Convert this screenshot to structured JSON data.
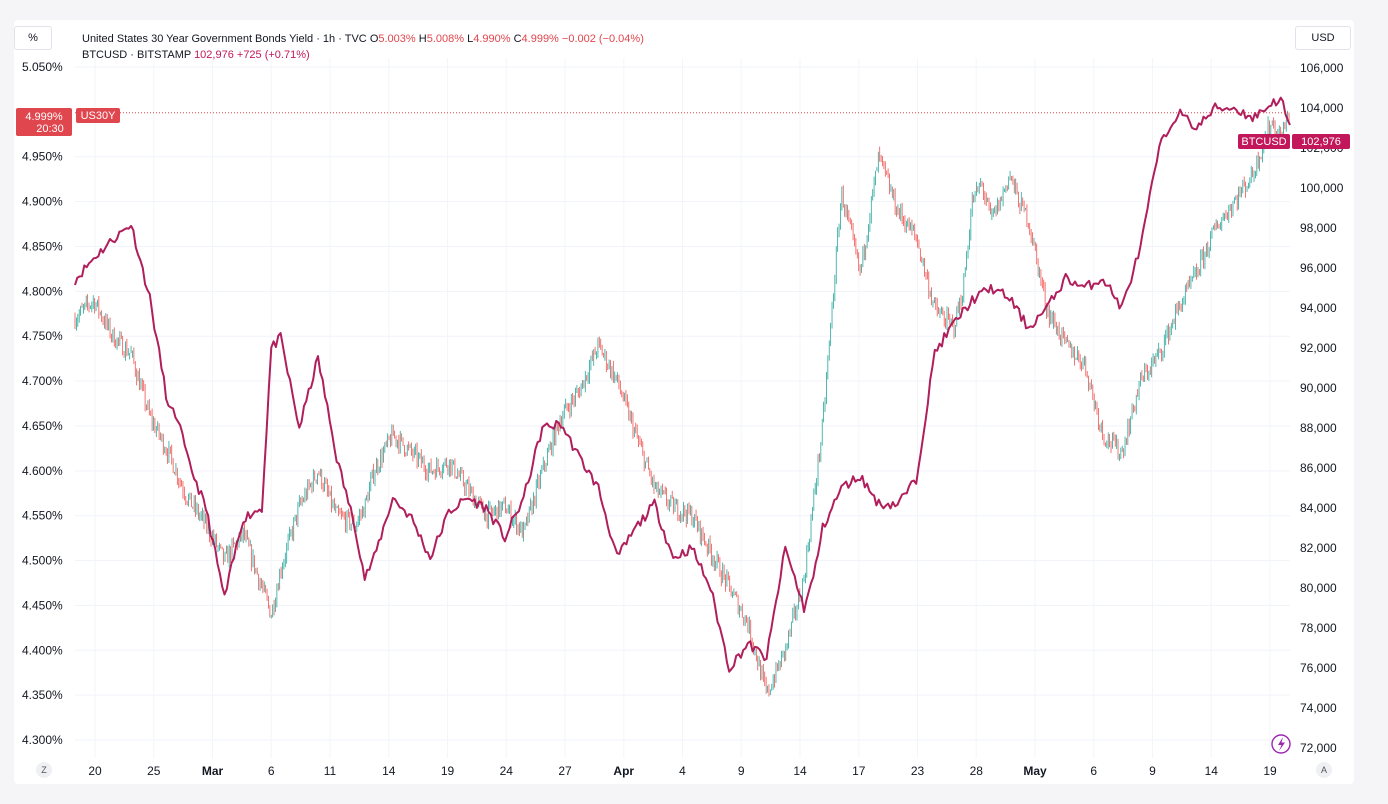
{
  "units": {
    "left": "%",
    "right": "USD"
  },
  "legend": {
    "us30y": {
      "title": "United States 30 Year Government Bonds Yield · 1h · TVC",
      "o_label": "O",
      "o_value": "5.003%",
      "h_label": "H",
      "h_value": "5.008%",
      "l_label": "L",
      "l_value": "4.990%",
      "c_label": "C",
      "c_value": "4.999%",
      "change": "−0.002 (−0.04%)"
    },
    "btcusd": {
      "title": "BTCUSD · BITSTAMP",
      "price": "102,976",
      "change": "+725 (+0.71%)"
    }
  },
  "badges": {
    "us30y_value": "4.999%",
    "us30y_time": "20:30",
    "us30y_symbol": "US30Y",
    "btc_symbol": "BTCUSD",
    "btc_value": "102,976"
  },
  "footer": {
    "left_btn": "Z",
    "right_btn": "A"
  },
  "colors": {
    "candle_up": "#26a69a",
    "candle_down": "#ef5350",
    "btc_line": "#b01e5c",
    "price_line": "#e0464d",
    "badge_red": "#e0464d",
    "badge_mag": "#c2185b"
  },
  "icons": {
    "bolt": "lightning-bolt-icon"
  },
  "chart_data": {
    "type": "line",
    "title": "",
    "x_tick_labels": [
      "20",
      "25",
      "Mar",
      "6",
      "11",
      "14",
      "19",
      "24",
      "27",
      "Apr",
      "4",
      "9",
      "14",
      "17",
      "23",
      "28",
      "May",
      "6",
      "9",
      "14",
      "19"
    ],
    "y_left": {
      "label": "%",
      "ticks": [
        "5.050%",
        "4.950%",
        "4.900%",
        "4.850%",
        "4.800%",
        "4.750%",
        "4.700%",
        "4.650%",
        "4.600%",
        "4.550%",
        "4.500%",
        "4.450%",
        "4.400%",
        "4.350%",
        "4.300%"
      ],
      "range": [
        4.28,
        5.06
      ]
    },
    "y_right": {
      "label": "USD",
      "ticks": [
        "106,000",
        "104,000",
        "102,000",
        "100,000",
        "98,000",
        "96,000",
        "94,000",
        "92,000",
        "90,000",
        "88,000",
        "86,000",
        "84,000",
        "82,000",
        "80,000",
        "78,000",
        "76,000",
        "74,000",
        "72,000"
      ],
      "range": [
        71500,
        106500
      ]
    },
    "x_index_range": [
      0,
      130
    ],
    "series": [
      {
        "name": "United States 30 Year Government Bonds Yield",
        "kind": "candle-approx",
        "axis": "left",
        "x": [
          0,
          2,
          4,
          6,
          8,
          10,
          12,
          14,
          16,
          18,
          19,
          20,
          21,
          22,
          24,
          26,
          28,
          30,
          31,
          32,
          34,
          36,
          38,
          40,
          42,
          44,
          46,
          48,
          50,
          52,
          54,
          56,
          58,
          60,
          62,
          64,
          66,
          68,
          70,
          72,
          74,
          76,
          78,
          80,
          82,
          84,
          86,
          88,
          90,
          92,
          94,
          95,
          96,
          97,
          98,
          99,
          100,
          101,
          102,
          104,
          106,
          108,
          110,
          112,
          114,
          116,
          118,
          120,
          122,
          124,
          126,
          128,
          129,
          130
        ],
        "values": [
          4.77,
          4.79,
          4.75,
          4.73,
          4.66,
          4.62,
          4.57,
          4.54,
          4.5,
          4.53,
          4.5,
          4.47,
          4.44,
          4.49,
          4.56,
          4.6,
          4.55,
          4.54,
          4.56,
          4.6,
          4.64,
          4.62,
          4.6,
          4.61,
          4.58,
          4.55,
          4.56,
          4.53,
          4.6,
          4.66,
          4.69,
          4.74,
          4.7,
          4.64,
          4.58,
          4.56,
          4.55,
          4.51,
          4.47,
          4.43,
          4.35,
          4.4,
          4.48,
          4.65,
          4.91,
          4.82,
          4.95,
          4.89,
          4.86,
          4.78,
          4.76,
          4.8,
          4.9,
          4.92,
          4.88,
          4.9,
          4.93,
          4.9,
          4.88,
          4.78,
          4.74,
          4.72,
          4.64,
          4.62,
          4.7,
          4.73,
          4.78,
          4.82,
          4.87,
          4.9,
          4.93,
          4.99,
          4.97,
          4.999
        ]
      },
      {
        "name": "BTCUSD",
        "kind": "line",
        "axis": "right",
        "x": [
          0,
          2,
          4,
          6,
          8,
          10,
          11,
          12,
          14,
          16,
          18,
          20,
          21,
          22,
          24,
          26,
          28,
          30,
          31,
          32,
          34,
          36,
          38,
          40,
          42,
          44,
          46,
          48,
          50,
          52,
          54,
          56,
          58,
          60,
          62,
          64,
          66,
          68,
          70,
          72,
          74,
          76,
          78,
          79,
          80,
          82,
          84,
          86,
          88,
          90,
          92,
          94,
          96,
          98,
          100,
          102,
          104,
          106,
          108,
          110,
          112,
          114,
          116,
          118,
          120,
          122,
          124,
          126,
          128,
          129,
          130
        ],
        "values": [
          95400,
          96500,
          97400,
          98200,
          94500,
          89000,
          88500,
          86500,
          84000,
          79500,
          83500,
          84000,
          92000,
          92500,
          88000,
          91500,
          86500,
          83000,
          80500,
          81500,
          84500,
          83500,
          81500,
          83800,
          84500,
          84000,
          82500,
          84500,
          88000,
          88200,
          86500,
          85000,
          81500,
          83000,
          84200,
          81500,
          82000,
          80000,
          76000,
          77200,
          76500,
          82000,
          79000,
          80500,
          83000,
          85000,
          85600,
          84200,
          84200,
          85400,
          91800,
          93200,
          94400,
          95000,
          94500,
          93000,
          94000,
          95500,
          95000,
          95500,
          94000,
          97000,
          102000,
          103800,
          103000,
          104000,
          104000,
          103500,
          104200,
          104500,
          102976
        ]
      }
    ]
  }
}
